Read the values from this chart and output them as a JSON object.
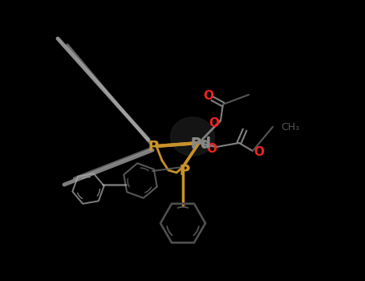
{
  "background_color": "#000000",
  "figure_size": [
    4.55,
    3.5
  ],
  "dpi": 100,
  "colors": {
    "gold": "#C8922A",
    "gray": "#808080",
    "lgray": "#999999",
    "dgray": "#555555",
    "vdgray": "#444444",
    "red": "#EE2222",
    "silver": "#AAAAAA",
    "charcoal": "#333333",
    "mid_gray": "#666666"
  },
  "xlim": [
    0,
    455
  ],
  "ylim": [
    0,
    350
  ]
}
